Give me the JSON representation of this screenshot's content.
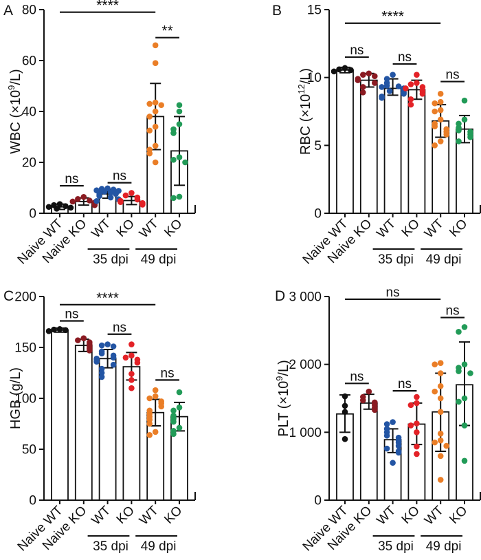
{
  "colors": {
    "black": "#111111",
    "dark_red": "#8B1B22",
    "blue": "#2355A4",
    "red": "#E32227",
    "orange": "#EA7E27",
    "green": "#229B58"
  },
  "chart_data": [
    {
      "type": "bar",
      "panel": "A",
      "ylabel": {
        "text": "WBC (×10⁹/L)",
        "prefix": "WBC (×10",
        "sup": "9",
        "suffix": "/L)"
      },
      "ylim": [
        0,
        80
      ],
      "yticks": [
        0,
        20,
        40,
        60,
        80
      ],
      "ytick_labels": [
        "0",
        "20",
        "40",
        "60",
        "80"
      ],
      "categories": [
        "Naive WT",
        "Naive KO",
        "WT",
        "KO",
        "WT",
        "KO"
      ],
      "group_labels": [
        {
          "label": "35 dpi",
          "from": 2,
          "to": 3
        },
        {
          "label": "49 dpi",
          "from": 4,
          "to": 5
        }
      ],
      "groups": [
        {
          "name": "Naive WT",
          "color_key": "black",
          "mean": 2.5,
          "err_low": 1.5,
          "err_high": 3.6,
          "points": [
            1.8,
            2.2,
            2.5,
            2.8,
            3.2,
            3.6
          ]
        },
        {
          "name": "Naive KO",
          "color_key": "dark_red",
          "mean": 4.6,
          "err_low": 3.2,
          "err_high": 6.0,
          "points": [
            3.2,
            3.8,
            4.2,
            4.6,
            5.0,
            5.6,
            6.4
          ]
        },
        {
          "name": "WT 35 dpi",
          "color_key": "blue",
          "mean": 7.6,
          "err_low": 5.9,
          "err_high": 9.3,
          "points": [
            4.8,
            5.5,
            6.2,
            6.8,
            7.2,
            7.6,
            7.9,
            8.2,
            8.5,
            8.8,
            9.0,
            9.3,
            9.6,
            9.8
          ]
        },
        {
          "name": "KO 35 dpi",
          "color_key": "red",
          "mean": 5.0,
          "err_low": 3.4,
          "err_high": 6.6,
          "points": [
            3.4,
            4.0,
            4.4,
            4.9,
            5.4,
            6.2,
            7.0,
            8.0
          ]
        },
        {
          "name": "WT 49 dpi",
          "color_key": "orange",
          "mean": 38,
          "err_low": 25,
          "err_high": 51,
          "points": [
            66,
            59,
            43.5,
            43,
            42.5,
            40,
            38,
            34,
            32.5,
            26.5,
            25,
            23.5,
            20
          ]
        },
        {
          "name": "KO 49 dpi",
          "color_key": "green",
          "mean": 24.5,
          "err_low": 11,
          "err_high": 38,
          "points": [
            42.5,
            40,
            35,
            33,
            31.5,
            22,
            21,
            20,
            6.5,
            6
          ]
        }
      ],
      "significance": [
        {
          "from": 0,
          "to": 4,
          "label": "****",
          "y": 79
        },
        {
          "from": 4,
          "to": 5,
          "label": "**",
          "y": 69
        },
        {
          "from": 0,
          "to": 1,
          "label": "ns",
          "y": 10.8
        },
        {
          "from": 2,
          "to": 3,
          "label": "ns",
          "y": 12
        }
      ]
    },
    {
      "type": "bar",
      "panel": "B",
      "ylabel": {
        "text": "RBC (×10¹²/L)",
        "prefix": "RBC (×10",
        "sup": "12",
        "suffix": "/L)"
      },
      "ylim": [
        0,
        15
      ],
      "yticks": [
        0,
        5,
        10,
        15
      ],
      "ytick_labels": [
        "0",
        "5",
        "10",
        "15"
      ],
      "categories": [
        "Naive WT",
        "Naive KO",
        "WT",
        "KO",
        "WT",
        "KO"
      ],
      "group_labels": [
        {
          "label": "35 dpi",
          "from": 2,
          "to": 3
        },
        {
          "label": "49 dpi",
          "from": 4,
          "to": 5
        }
      ],
      "groups": [
        {
          "name": "Naive WT",
          "color_key": "black",
          "mean": 10.55,
          "err_low": 10.35,
          "err_high": 10.75,
          "points": [
            10.45,
            10.55,
            10.6,
            10.7
          ]
        },
        {
          "name": "Naive KO",
          "color_key": "dark_red",
          "mean": 9.8,
          "err_low": 9.3,
          "err_high": 10.3,
          "points": [
            10.3,
            10.2,
            10.1,
            9.9,
            9.8,
            9.6,
            9.3,
            8.9
          ]
        },
        {
          "name": "WT 35 dpi",
          "color_key": "blue",
          "mean": 9.2,
          "err_low": 8.7,
          "err_high": 9.9,
          "points": [
            10.2,
            9.9,
            9.6,
            9.4,
            9.35,
            9.3,
            9.2,
            9.1,
            9.0,
            8.9,
            8.8,
            8.6,
            8.5
          ]
        },
        {
          "name": "KO 35 dpi",
          "color_key": "red",
          "mean": 9.1,
          "err_low": 8.4,
          "err_high": 9.8,
          "points": [
            10.2,
            9.6,
            9.5,
            9.3,
            9.2,
            9.0,
            8.8,
            8.4,
            8.0
          ]
        },
        {
          "name": "WT 49 dpi",
          "color_key": "orange",
          "mean": 6.8,
          "err_low": 5.6,
          "err_high": 8.0,
          "points": [
            8.8,
            8.2,
            8.1,
            7.6,
            7.5,
            6.9,
            6.6,
            6.4,
            6.2,
            6.0,
            5.8,
            5.3,
            5.0
          ]
        },
        {
          "name": "KO 49 dpi",
          "color_key": "green",
          "mean": 6.2,
          "err_low": 5.2,
          "err_high": 7.2,
          "points": [
            8.3,
            6.9,
            6.6,
            6.3,
            6.1,
            6.0,
            5.8,
            5.6,
            5.3
          ]
        }
      ],
      "significance": [
        {
          "from": 0,
          "to": 4,
          "label": "****",
          "y": 14.0
        },
        {
          "from": 0,
          "to": 1,
          "label": "ns",
          "y": 11.5
        },
        {
          "from": 2,
          "to": 3,
          "label": "ns",
          "y": 11.0
        },
        {
          "from": 4,
          "to": 5,
          "label": "ns",
          "y": 9.7
        }
      ]
    },
    {
      "type": "bar",
      "panel": "C",
      "ylabel": {
        "text": "HGB (g/L)",
        "prefix": "HGB (g/L)",
        "sup": "",
        "suffix": ""
      },
      "ylim": [
        0,
        200
      ],
      "yticks": [
        0,
        50,
        100,
        150,
        200
      ],
      "ytick_labels": [
        "0",
        "50",
        "100",
        "150",
        "200"
      ],
      "categories": [
        "Naive WT",
        "Naive KO",
        "WT",
        "KO",
        "WT",
        "KO"
      ],
      "group_labels": [
        {
          "label": "35 dpi",
          "from": 2,
          "to": 3
        },
        {
          "label": "49 dpi",
          "from": 4,
          "to": 5
        }
      ],
      "groups": [
        {
          "name": "Naive WT",
          "color_key": "black",
          "mean": 167,
          "err_low": 165,
          "err_high": 169,
          "points": [
            166,
            167,
            167.5,
            168
          ]
        },
        {
          "name": "Naive KO",
          "color_key": "dark_red",
          "mean": 152,
          "err_low": 146,
          "err_high": 158,
          "points": [
            159,
            157,
            155,
            153,
            151,
            149,
            147
          ]
        },
        {
          "name": "WT 35 dpi",
          "color_key": "blue",
          "mean": 139,
          "err_low": 130,
          "err_high": 148,
          "points": [
            153,
            152,
            151,
            146,
            144,
            142,
            140,
            139,
            138,
            136,
            133,
            129,
            125,
            121
          ]
        },
        {
          "name": "KO 35 dpi",
          "color_key": "red",
          "mean": 131,
          "err_low": 118,
          "err_high": 145,
          "points": [
            153,
            142,
            140,
            138,
            135,
            124,
            118,
            110
          ]
        },
        {
          "name": "WT 49 dpi",
          "color_key": "orange",
          "mean": 86,
          "err_low": 73,
          "err_high": 99,
          "points": [
            108,
            102,
            100,
            97,
            95,
            92,
            88,
            85,
            82,
            79,
            75,
            67,
            64
          ]
        },
        {
          "name": "KO 49 dpi",
          "color_key": "green",
          "mean": 82,
          "err_low": 68,
          "err_high": 96,
          "points": [
            106,
            91,
            88,
            83,
            80,
            77,
            71,
            68,
            65
          ]
        }
      ],
      "significance": [
        {
          "from": 0,
          "to": 4,
          "label": "****",
          "y": 192
        },
        {
          "from": 0,
          "to": 1,
          "label": "ns",
          "y": 176
        },
        {
          "from": 2,
          "to": 3,
          "label": "ns",
          "y": 163
        },
        {
          "from": 4,
          "to": 5,
          "label": "ns",
          "y": 118
        }
      ]
    },
    {
      "type": "bar",
      "panel": "D",
      "ylabel": {
        "text": "PLT (×10⁹/L)",
        "prefix": "PLT (×10",
        "sup": "9",
        "suffix": "/L)"
      },
      "ylim": [
        0,
        3000
      ],
      "yticks": [
        0,
        1000,
        2000,
        3000
      ],
      "ytick_labels": [
        "0",
        "1 000",
        "2 000",
        "3 000"
      ],
      "categories": [
        "Naive WT",
        "Naive KO",
        "WT",
        "KO",
        "WT",
        "KO"
      ],
      "group_labels": [
        {
          "label": "35 dpi",
          "from": 2,
          "to": 3
        },
        {
          "label": "49 dpi",
          "from": 4,
          "to": 5
        }
      ],
      "groups": [
        {
          "name": "Naive WT",
          "color_key": "black",
          "mean": 1270,
          "err_low": 1000,
          "err_high": 1550,
          "points": [
            1530,
            1390,
            1300,
            900
          ]
        },
        {
          "name": "Naive KO",
          "color_key": "dark_red",
          "mean": 1430,
          "err_low": 1340,
          "err_high": 1560,
          "points": [
            1600,
            1520,
            1470,
            1440,
            1400,
            1360,
            1330
          ]
        },
        {
          "name": "WT 35 dpi",
          "color_key": "blue",
          "mean": 890,
          "err_low": 700,
          "err_high": 1050,
          "points": [
            1150,
            1120,
            1050,
            1000,
            950,
            920,
            880,
            850,
            800,
            760,
            720,
            700,
            550
          ]
        },
        {
          "name": "KO 35 dpi",
          "color_key": "red",
          "mean": 1120,
          "err_low": 820,
          "err_high": 1430,
          "points": [
            1520,
            1430,
            1400,
            1130,
            1100,
            1000,
            790,
            680
          ]
        },
        {
          "name": "WT 49 dpi",
          "color_key": "orange",
          "mean": 1300,
          "err_low": 720,
          "err_high": 1870,
          "points": [
            2020,
            2000,
            1870,
            1680,
            1600,
            1500,
            1300,
            980,
            880,
            850,
            800,
            650,
            300
          ]
        },
        {
          "name": "KO 49 dpi",
          "color_key": "green",
          "mean": 1700,
          "err_low": 1100,
          "err_high": 2330,
          "points": [
            2550,
            2480,
            2000,
            1950,
            1900,
            1870,
            1500,
            1450,
            1100,
            580
          ]
        }
      ],
      "significance": [
        {
          "from": 0,
          "to": 4,
          "label": "ns",
          "y": 2960
        },
        {
          "from": 0,
          "to": 1,
          "label": "ns",
          "y": 1720
        },
        {
          "from": 2,
          "to": 3,
          "label": "ns",
          "y": 1610
        },
        {
          "from": 4,
          "to": 5,
          "label": "ns",
          "y": 2690
        }
      ]
    }
  ]
}
